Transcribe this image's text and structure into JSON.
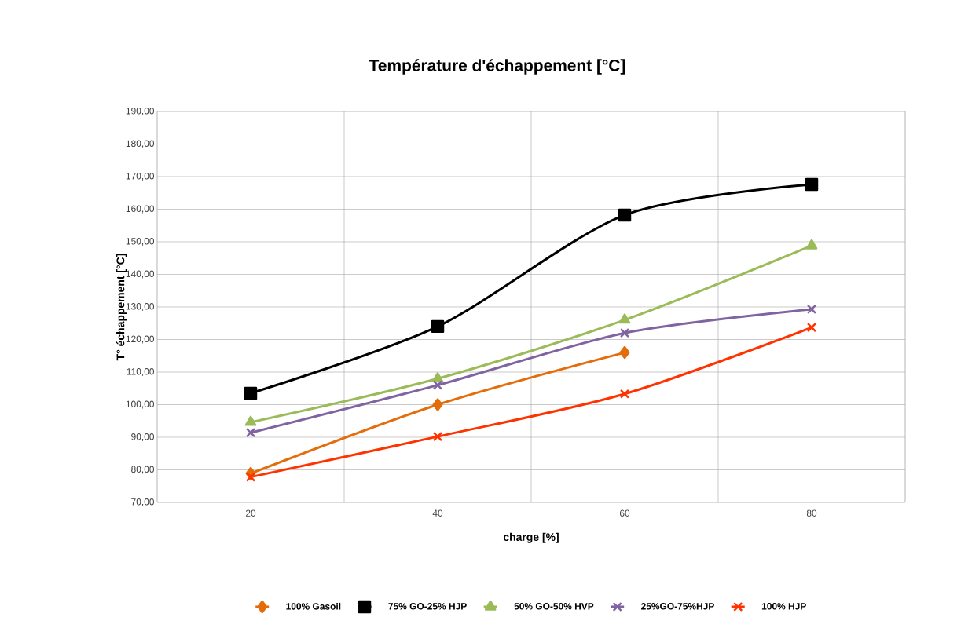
{
  "chart_data": {
    "type": "line",
    "title": "Température d'échappement [°C]",
    "xlabel": "charge [%]",
    "ylabel": "T° échappement [°C]",
    "categories": [
      "20",
      "40",
      "60",
      "80"
    ],
    "series": [
      {
        "name": "100% Gasoil",
        "color": "#e46c0a",
        "marker": "diamond",
        "values": [
          78.9,
          100,
          116,
          null
        ]
      },
      {
        "name": "75% GO-25% HJP",
        "color": "#000000",
        "marker": "square",
        "values": [
          103.5,
          124,
          158.2,
          167.6
        ]
      },
      {
        "name": "50% GO-50% HVP",
        "color": "#9bbb59",
        "marker": "triangle",
        "values": [
          94.6,
          108,
          126,
          148.8
        ]
      },
      {
        "name": "25%GO-75%HJP",
        "color": "#8064a2",
        "marker": "cross",
        "values": [
          91.4,
          106,
          122,
          129.3
        ]
      },
      {
        "name": "100% HJP",
        "color": "#ff3300",
        "marker": "cross",
        "values": [
          77.8,
          90.2,
          103.3,
          123.7
        ]
      }
    ],
    "ylim": [
      70,
      190
    ],
    "yticks": [
      {
        "value": 70,
        "label": "70,00"
      },
      {
        "value": 80,
        "label": "80,00"
      },
      {
        "value": 90,
        "label": "90,00"
      },
      {
        "value": 100,
        "label": "100,00"
      },
      {
        "value": 110,
        "label": "110,00"
      },
      {
        "value": 120,
        "label": "120,00"
      },
      {
        "value": 130,
        "label": "130,00"
      },
      {
        "value": 140,
        "label": "140,00"
      },
      {
        "value": 150,
        "label": "150,00"
      },
      {
        "value": 160,
        "label": "160,00"
      },
      {
        "value": 170,
        "label": "170,00"
      },
      {
        "value": 180,
        "label": "180,00"
      },
      {
        "value": 190,
        "label": "190,00"
      }
    ],
    "grid": true,
    "legend": "bottom",
    "line_style": "solid"
  }
}
